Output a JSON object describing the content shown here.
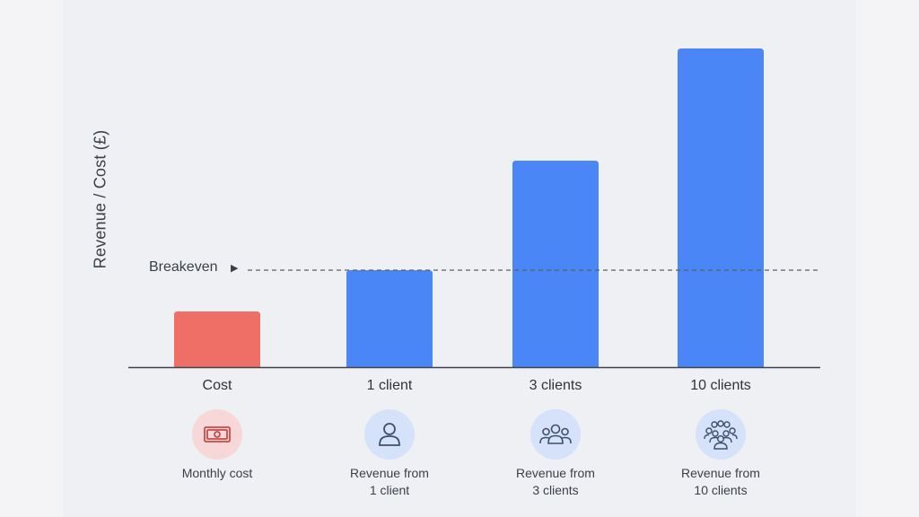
{
  "chart_data": {
    "type": "bar",
    "categories": [
      "Cost",
      "1 client",
      "3 clients",
      "10 clients"
    ],
    "values": [
      62,
      108,
      230,
      355
    ],
    "colors": [
      "#ef6f66",
      "#4a86f5",
      "#4a86f5",
      "#4a86f5"
    ],
    "ylabel": "Revenue / Cost (£)",
    "xlabel": "",
    "ylim": [
      0,
      370
    ],
    "grid": false,
    "reference_line": {
      "label": "Breakeven",
      "value": 108
    }
  },
  "legend_items": [
    {
      "lines": [
        "Monthly cost"
      ],
      "icon": "banknote-icon",
      "bg": "#f7d7d7",
      "stroke": "#c84b4b"
    },
    {
      "lines": [
        "Revenue from",
        "1 client"
      ],
      "icon": "person-icon",
      "bg": "#d6e2f9",
      "stroke": "#3f4f6b"
    },
    {
      "lines": [
        "Revenue from",
        "3 clients"
      ],
      "icon": "group-icon",
      "bg": "#d6e2f9",
      "stroke": "#3f4f6b"
    },
    {
      "lines": [
        "Revenue from",
        "10 clients"
      ],
      "icon": "crowd-icon",
      "bg": "#d6e2f9",
      "stroke": "#3f4f6b"
    }
  ]
}
